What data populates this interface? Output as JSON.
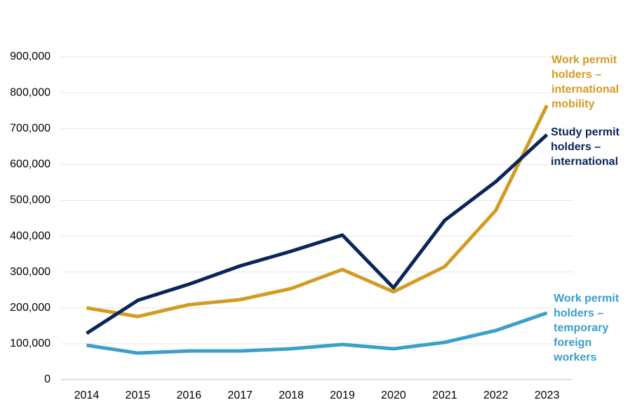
{
  "chart_data": {
    "type": "line",
    "categories": [
      "2014",
      "2015",
      "2016",
      "2017",
      "2018",
      "2019",
      "2020",
      "2021",
      "2022",
      "2023"
    ],
    "series": [
      {
        "name": "Work permit holders – international mobility",
        "color": "#d39b22",
        "values": [
          200000,
          176000,
          209000,
          223000,
          254000,
          307000,
          245000,
          315000,
          472000,
          765000
        ]
      },
      {
        "name": "Study permit holders – international",
        "color": "#0b2559",
        "values": [
          129000,
          221000,
          266000,
          317000,
          358000,
          403000,
          256000,
          444000,
          552000,
          683000
        ]
      },
      {
        "name": "Work permit holders – temporary foreign workers",
        "color": "#3a9fc9",
        "values": [
          96000,
          74000,
          80000,
          80000,
          86000,
          98000,
          86000,
          104000,
          137000,
          186000
        ]
      }
    ],
    "ylim": [
      0,
      900000
    ],
    "yticks": [
      0,
      {
        "value": 100000,
        "label": "100,000"
      },
      {
        "value": 200000,
        "label": "200,000"
      },
      {
        "value": 300000,
        "label": "300,000"
      },
      {
        "value": 400000,
        "label": "400,000"
      },
      {
        "value": 500000,
        "label": "500,000"
      },
      {
        "value": 600000,
        "label": "600,000"
      },
      {
        "value": 700000,
        "label": "700,000"
      },
      {
        "value": 800000,
        "label": "800,000"
      },
      {
        "value": 900000,
        "label": "900,000"
      }
    ],
    "grid": true
  }
}
